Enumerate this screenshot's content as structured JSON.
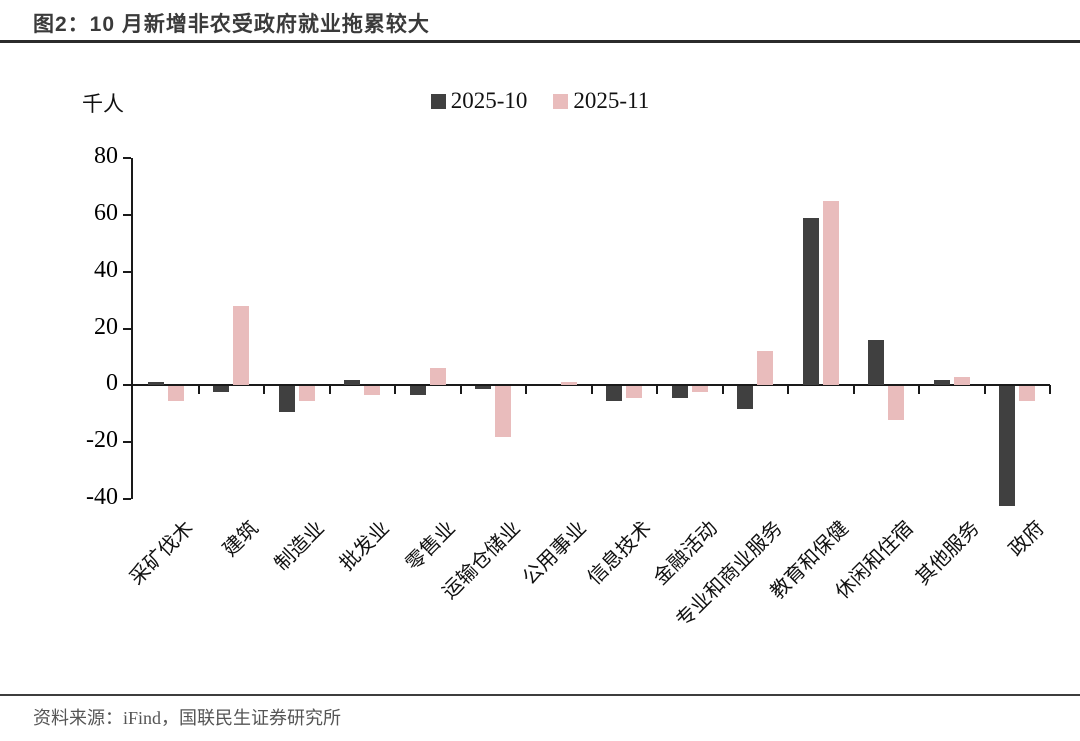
{
  "figure": {
    "title": "图2：10 月新增非农受政府就业拖累较大",
    "source": "资料来源：iFind，国联民生证券研究所"
  },
  "chart_data": {
    "type": "bar",
    "title": "图2：10 月新增非农受政府就业拖累较大",
    "unit_label": "千人",
    "categories": [
      "采矿伐木",
      "建筑",
      "制造业",
      "批发业",
      "零售业",
      "运输仓储业",
      "公用事业",
      "信息技术",
      "金融活动",
      "专业和商业服务",
      "教育和保健",
      "休闲和住宿",
      "其他服务",
      "政府"
    ],
    "series": [
      {
        "name": "2025-10",
        "color": "#404040",
        "values": [
          1,
          -2,
          -9,
          2,
          -3,
          -1,
          0,
          -5,
          -4,
          -8,
          59,
          16,
          2,
          -42
        ]
      },
      {
        "name": "2025-11",
        "color": "#e9bcbc",
        "values": [
          -5,
          28,
          -5,
          -3,
          6,
          -18,
          1,
          -4,
          -2,
          12,
          65,
          -12,
          3,
          -5
        ]
      }
    ],
    "ylim": [
      -40,
      80
    ],
    "yticks": [
      80,
      60,
      40,
      20,
      0,
      -20,
      -40
    ],
    "legend_position": "top-center",
    "grid": false
  },
  "colors": {
    "axis": "#1a1a1a",
    "title_text": "#3a3a3a",
    "source_text": "#555555",
    "background": "#ffffff"
  }
}
